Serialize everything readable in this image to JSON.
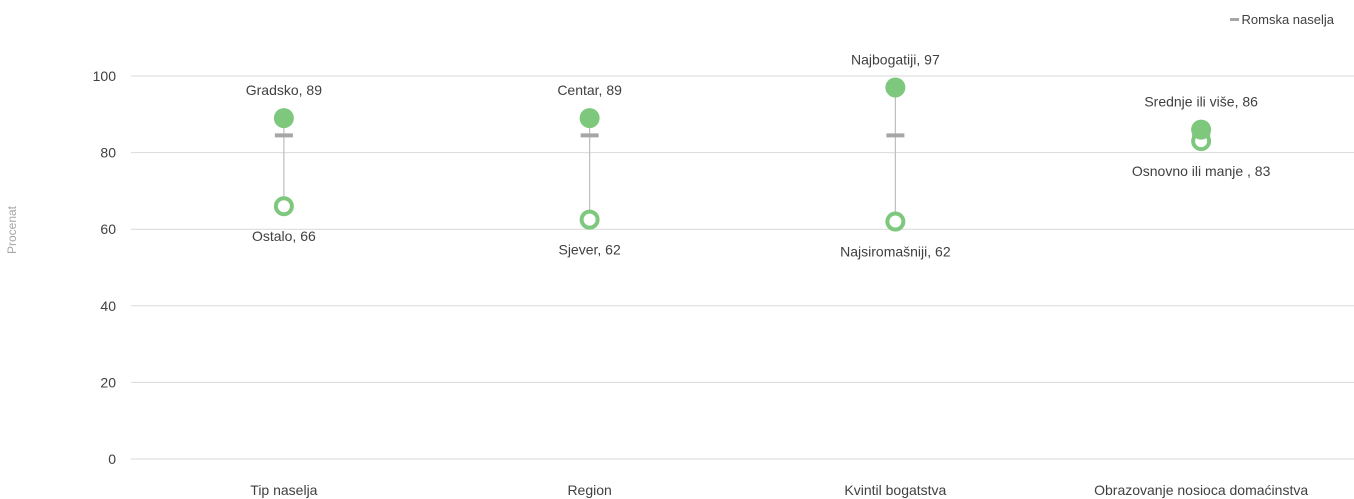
{
  "chart_data": {
    "type": "dot-range",
    "ylabel": "Procenat",
    "ylim": [
      0,
      100
    ],
    "yticks": [
      0,
      20,
      40,
      60,
      80,
      100
    ],
    "grid": true,
    "legend": {
      "placement": "top-right",
      "label": "Romska naselja"
    },
    "reference_value": 84.5,
    "categories": [
      "Tip naselja",
      "Region",
      "Kvintil bogatstva",
      "Obrazovanje nosioca domaćinstva"
    ],
    "high": [
      {
        "label": "Gradsko, 89",
        "value": 89
      },
      {
        "label": "Centar, 89",
        "value": 89
      },
      {
        "label": "Najbogatiji, 97",
        "value": 97
      },
      {
        "label": "Srednje ili više, 86",
        "value": 86
      }
    ],
    "low": [
      {
        "label": "Ostalo, 66",
        "value": 66
      },
      {
        "label": "Sjever, 62",
        "value": 62.5
      },
      {
        "label": "Najsiromašniji, 62",
        "value": 62
      },
      {
        "label": "Osnovno ili manje , 83",
        "value": 83
      }
    ],
    "colors": {
      "high": "#7dc87d",
      "low": "#7dc87d",
      "reference": "#a6a6a6",
      "range_line": "#bfbfbf",
      "grid": "#d9d9d9"
    }
  }
}
